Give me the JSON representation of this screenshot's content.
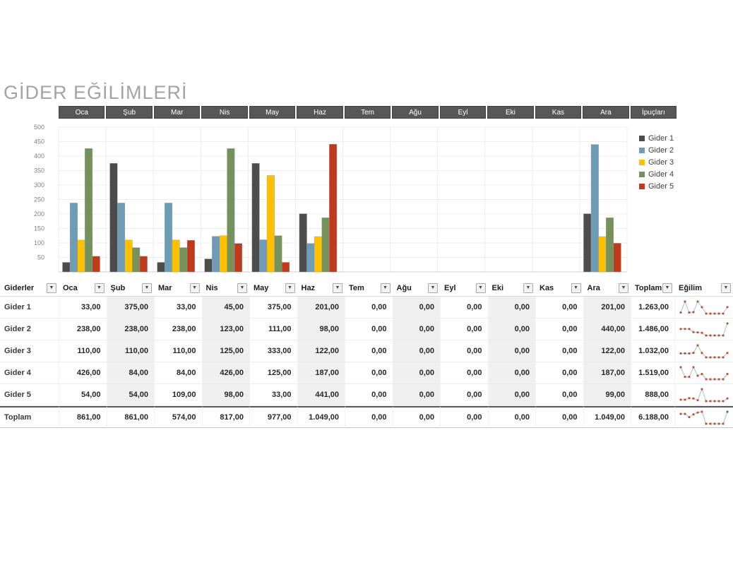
{
  "page": {
    "title": "GİDER EĞİLİMLERİ"
  },
  "tabs": [
    "Oca",
    "Şub",
    "Mar",
    "Nis",
    "May",
    "Haz",
    "Tem",
    "Ağu",
    "Eyl",
    "Eki",
    "Kas",
    "Ara",
    "İpuçları"
  ],
  "colors": {
    "tab_bg": "#575757",
    "band": "#efefef",
    "grid": "#ededed",
    "axis_text": "#808080",
    "sparkline_line": "#a9bdcb",
    "sparkline_marker": "#be4b27",
    "sparkline_last_total": "#3e5f9e",
    "series": [
      "#4c4c4c",
      "#6d9cb9",
      "#ffc000",
      "#75925b",
      "#c0391b"
    ]
  },
  "chart_data": {
    "type": "bar",
    "title": "",
    "xlabel": "",
    "ylabel": "",
    "categories": [
      "Oca",
      "Şub",
      "Mar",
      "Nis",
      "May",
      "Haz",
      "Tem",
      "Ağu",
      "Eyl",
      "Eki",
      "Kas",
      "Ara"
    ],
    "series": [
      {
        "name": "Gider 1",
        "color": "#4c4c4c",
        "values": [
          33,
          375,
          33,
          45,
          375,
          201,
          0,
          0,
          0,
          0,
          0,
          201
        ]
      },
      {
        "name": "Gider 2",
        "color": "#6d9cb9",
        "values": [
          238,
          238,
          238,
          123,
          111,
          98,
          0,
          0,
          0,
          0,
          0,
          440
        ]
      },
      {
        "name": "Gider 3",
        "color": "#ffc000",
        "values": [
          110,
          110,
          110,
          125,
          333,
          122,
          0,
          0,
          0,
          0,
          0,
          122
        ]
      },
      {
        "name": "Gider 4",
        "color": "#75925b",
        "values": [
          426,
          84,
          84,
          426,
          125,
          187,
          0,
          0,
          0,
          0,
          0,
          187
        ]
      },
      {
        "name": "Gider 5",
        "color": "#c0391b",
        "values": [
          54,
          54,
          109,
          98,
          33,
          441,
          0,
          0,
          0,
          0,
          0,
          99
        ]
      }
    ],
    "ylim": [
      0,
      500
    ],
    "ytick_step": 50,
    "yticks": [
      50,
      100,
      150,
      200,
      250,
      300,
      350,
      400,
      450,
      500
    ],
    "grid": true,
    "legend_position": "right"
  },
  "table": {
    "header": [
      "Giderler",
      "Oca",
      "Şub",
      "Mar",
      "Nis",
      "May",
      "Haz",
      "Tem",
      "Ağu",
      "Eyl",
      "Eki",
      "Kas",
      "Ara",
      "Toplam",
      "Eğilim"
    ],
    "rows": [
      {
        "label": "Gider 1",
        "numbers": [
          33,
          375,
          33,
          45,
          375,
          201,
          0,
          0,
          0,
          0,
          0,
          201
        ],
        "display": [
          "33,00",
          "375,00",
          "33,00",
          "45,00",
          "375,00",
          "201,00",
          "0,00",
          "0,00",
          "0,00",
          "0,00",
          "0,00",
          "201,00"
        ],
        "total": "1.263,00"
      },
      {
        "label": "Gider 2",
        "numbers": [
          238,
          238,
          238,
          123,
          111,
          98,
          0,
          0,
          0,
          0,
          0,
          440
        ],
        "display": [
          "238,00",
          "238,00",
          "238,00",
          "123,00",
          "111,00",
          "98,00",
          "0,00",
          "0,00",
          "0,00",
          "0,00",
          "0,00",
          "440,00"
        ],
        "total": "1.486,00"
      },
      {
        "label": "Gider 3",
        "numbers": [
          110,
          110,
          110,
          125,
          333,
          122,
          0,
          0,
          0,
          0,
          0,
          122
        ],
        "display": [
          "110,00",
          "110,00",
          "110,00",
          "125,00",
          "333,00",
          "122,00",
          "0,00",
          "0,00",
          "0,00",
          "0,00",
          "0,00",
          "122,00"
        ],
        "total": "1.032,00"
      },
      {
        "label": "Gider 4",
        "numbers": [
          426,
          84,
          84,
          426,
          125,
          187,
          0,
          0,
          0,
          0,
          0,
          187
        ],
        "display": [
          "426,00",
          "84,00",
          "84,00",
          "426,00",
          "125,00",
          "187,00",
          "0,00",
          "0,00",
          "0,00",
          "0,00",
          "0,00",
          "187,00"
        ],
        "total": "1.519,00"
      },
      {
        "label": "Gider 5",
        "numbers": [
          54,
          54,
          109,
          98,
          33,
          441,
          0,
          0,
          0,
          0,
          0,
          99
        ],
        "display": [
          "54,00",
          "54,00",
          "109,00",
          "98,00",
          "33,00",
          "441,00",
          "0,00",
          "0,00",
          "0,00",
          "0,00",
          "0,00",
          "99,00"
        ],
        "total": "888,00"
      }
    ],
    "total_row": {
      "label": "Toplam",
      "numbers": [
        861,
        861,
        574,
        817,
        977,
        1049,
        0,
        0,
        0,
        0,
        0,
        1049
      ],
      "display": [
        "861,00",
        "861,00",
        "574,00",
        "817,00",
        "977,00",
        "1.049,00",
        "0,00",
        "0,00",
        "0,00",
        "0,00",
        "0,00",
        "1.049,00"
      ],
      "total": "6.188,00"
    }
  }
}
